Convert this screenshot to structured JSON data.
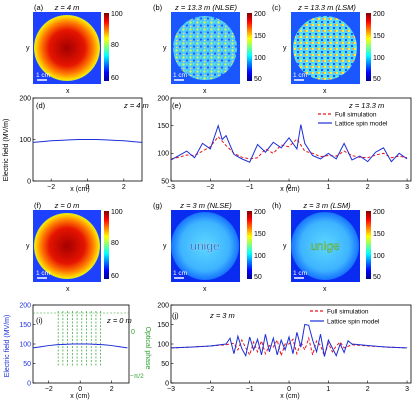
{
  "panels": {
    "a": {
      "letter": "(a)",
      "title": "z = 4 m",
      "xlabel": "x",
      "ylabel": "y",
      "scalebar": "1 cm",
      "colorbar_ticks": [
        "100",
        "80",
        "60"
      ],
      "cmin": 60,
      "cmax": 100
    },
    "b": {
      "letter": "(b)",
      "title": "z = 13.3 m (NLSE)",
      "xlabel": "x",
      "ylabel": "y",
      "scalebar": "1 cm",
      "colorbar_ticks": [
        "200",
        "150",
        "100",
        "50"
      ],
      "cmin": 50,
      "cmax": 200
    },
    "c": {
      "letter": "(c)",
      "title": "z = 13.3 m (LSM)",
      "xlabel": "x",
      "ylabel": "y",
      "scalebar": "1 cm",
      "colorbar_ticks": [
        "200",
        "150",
        "100",
        "50"
      ],
      "cmin": 50,
      "cmax": 200
    },
    "d": {
      "letter": "(d)",
      "title": "z = 4 m",
      "xlabel": "x (cm)"
    },
    "e": {
      "letter": "(e)",
      "title": "z = 13.3 m",
      "xlabel": "x (cm)",
      "legend": [
        "Full simulation",
        "Lattice spin model"
      ]
    },
    "f": {
      "letter": "(f)",
      "title": "z = 0 m",
      "xlabel": "x",
      "ylabel": "y",
      "scalebar": "1 cm",
      "colorbar_ticks": [
        "100",
        "80",
        "60"
      ],
      "cmin": 60,
      "cmax": 100
    },
    "g": {
      "letter": "(g)",
      "title": "z = 3 m (NLSE)",
      "xlabel": "x",
      "ylabel": "y",
      "scalebar": "1 cm",
      "image_text": "unige",
      "colorbar_ticks": [
        "200",
        "150",
        "100",
        "50"
      ],
      "cmin": 50,
      "cmax": 200
    },
    "h": {
      "letter": "(h)",
      "title": "z = 3 m (LSM)",
      "xlabel": "x",
      "ylabel": "y",
      "scalebar": "1 cm",
      "image_text": "unige",
      "colorbar_ticks": [
        "200",
        "150",
        "100",
        "50"
      ],
      "cmin": 50,
      "cmax": 200
    },
    "i": {
      "letter": "(i)",
      "title": "z = 0 m",
      "xlabel": "x (cm)",
      "ylabel_left": "Electric field (MV/m)",
      "ylabel_right": "Optical phase",
      "right_ticks": [
        "0",
        "−π/2"
      ]
    },
    "j": {
      "letter": "(j)",
      "title": "z = 3 m",
      "xlabel": "x (cm)",
      "legend": [
        "Full simulation",
        "Lattice spin model"
      ]
    }
  },
  "shared_ylabel": "Electric field (MV/m)",
  "colors": {
    "full_simulation": "#e8141b",
    "lattice_spin_model": "#1c2fd8",
    "phase": "#2ca02c"
  },
  "chart_data": [
    {
      "id": "d",
      "type": "line",
      "xlim": [
        -3,
        3
      ],
      "ylim": [
        0,
        200
      ],
      "xticks": [
        -2,
        0,
        2
      ],
      "yticks": [
        0,
        100,
        200
      ],
      "series": [
        {
          "name": "field",
          "color": "#1c2fd8",
          "x": [
            -3,
            -2.5,
            -2,
            -1.5,
            -1,
            -0.5,
            0,
            0.5,
            1,
            1.5,
            2,
            2.5,
            3
          ],
          "y": [
            93,
            95,
            97,
            98,
            99,
            100,
            100,
            100,
            99,
            98,
            97,
            95,
            93
          ]
        }
      ]
    },
    {
      "id": "e",
      "type": "line",
      "xlim": [
        -3,
        3.1
      ],
      "ylim": [
        50,
        200
      ],
      "xticks": [
        -3,
        -2,
        -1,
        0,
        1,
        2,
        3
      ],
      "yticks": [
        50,
        100,
        150,
        200
      ],
      "series": [
        {
          "name": "Full simulation",
          "style": "dashed",
          "color": "#e8141b",
          "x": [
            -3,
            -2.8,
            -2.6,
            -2.4,
            -2.2,
            -2.0,
            -1.8,
            -1.6,
            -1.4,
            -1.2,
            -1.0,
            -0.8,
            -0.6,
            -0.4,
            -0.2,
            0,
            0.2,
            0.4,
            0.6,
            0.8,
            1.0,
            1.2,
            1.4,
            1.6,
            1.8,
            2.0,
            2.2,
            2.4,
            2.6,
            2.8,
            3.0
          ],
          "y": [
            90,
            93,
            97,
            96,
            104,
            112,
            130,
            114,
            100,
            93,
            90,
            92,
            108,
            100,
            115,
            112,
            126,
            104,
            100,
            94,
            96,
            95,
            104,
            96,
            93,
            92,
            97,
            100,
            92,
            95,
            92
          ]
        },
        {
          "name": "Lattice spin model",
          "style": "solid",
          "color": "#1c2fd8",
          "x": [
            -3,
            -2.8,
            -2.6,
            -2.4,
            -2.2,
            -2.0,
            -1.8,
            -1.7,
            -1.6,
            -1.4,
            -1.2,
            -1.0,
            -0.8,
            -0.6,
            -0.4,
            -0.2,
            0,
            0.2,
            0.3,
            0.4,
            0.6,
            0.8,
            1.0,
            1.2,
            1.4,
            1.6,
            1.8,
            2.0,
            2.2,
            2.4,
            2.6,
            2.8,
            3.0
          ],
          "y": [
            88,
            96,
            104,
            92,
            118,
            108,
            150,
            125,
            132,
            98,
            90,
            84,
            116,
            102,
            120,
            110,
            128,
            108,
            152,
            118,
            96,
            90,
            100,
            90,
            118,
            88,
            95,
            85,
            102,
            110,
            85,
            100,
            90
          ]
        }
      ]
    },
    {
      "id": "i",
      "type": "line",
      "xlim": [
        -3,
        3.1
      ],
      "ylim": [
        0,
        200
      ],
      "xticks": [
        -2,
        0,
        2
      ],
      "yticks": [
        0,
        50,
        100,
        150,
        200
      ],
      "series": [
        {
          "name": "field",
          "color": "#1c2fd8",
          "x": [
            -3,
            -2.5,
            -2,
            -1.5,
            -1,
            -0.5,
            0,
            0.5,
            1,
            1.5,
            2,
            2.5,
            3
          ],
          "y": [
            90,
            93,
            96,
            98,
            99,
            100,
            100,
            100,
            99,
            98,
            96,
            93,
            90
          ]
        }
      ],
      "phase_marks_x": [
        -1.4,
        -1.1,
        -0.8,
        -0.5,
        -0.2,
        0.1,
        0.4,
        0.7,
        1.0,
        1.3
      ]
    },
    {
      "id": "j",
      "type": "line",
      "xlim": [
        -3,
        3.1
      ],
      "ylim": [
        0,
        200
      ],
      "xticks": [
        -3,
        -2,
        -1,
        0,
        1,
        2,
        3
      ],
      "yticks": [
        0,
        50,
        100,
        150,
        200
      ],
      "series": [
        {
          "name": "Full simulation",
          "style": "dashed",
          "color": "#e8141b",
          "x": [
            -3,
            -2.5,
            -2,
            -1.6,
            -1.4,
            -1.3,
            -1.2,
            -1.1,
            -1.0,
            -0.9,
            -0.8,
            -0.7,
            -0.6,
            -0.5,
            -0.4,
            -0.3,
            -0.2,
            -0.1,
            0,
            0.1,
            0.2,
            0.3,
            0.4,
            0.5,
            0.6,
            0.7,
            0.8,
            0.9,
            1.0,
            1.1,
            1.2,
            1.3,
            1.4,
            1.6,
            2.0,
            2.5,
            3.0
          ],
          "y": [
            90,
            92,
            95,
            98,
            102,
            85,
            110,
            90,
            72,
            105,
            80,
            108,
            75,
            96,
            92,
            110,
            70,
            100,
            100,
            112,
            75,
            105,
            85,
            115,
            72,
            108,
            96,
            70,
            102,
            80,
            95,
            105,
            90,
            98,
            95,
            92,
            90
          ]
        },
        {
          "name": "Lattice spin model",
          "style": "solid",
          "color": "#1c2fd8",
          "x": [
            -3,
            -2.5,
            -2,
            -1.6,
            -1.5,
            -1.4,
            -1.3,
            -1.2,
            -1.1,
            -1.0,
            -0.9,
            -0.8,
            -0.7,
            -0.6,
            -0.5,
            -0.4,
            -0.3,
            -0.2,
            -0.1,
            0,
            0.1,
            0.2,
            0.3,
            0.4,
            0.5,
            0.6,
            0.7,
            0.8,
            0.9,
            1.0,
            1.1,
            1.2,
            1.3,
            1.4,
            1.5,
            1.6,
            2.0,
            2.5,
            3.0
          ],
          "y": [
            90,
            92,
            95,
            100,
            115,
            75,
            120,
            88,
            70,
            118,
            85,
            112,
            72,
            125,
            80,
            115,
            72,
            110,
            85,
            118,
            75,
            130,
            92,
            150,
            148,
            110,
            80,
            125,
            68,
            110,
            90,
            70,
            100,
            78,
            108,
            100,
            96,
            92,
            90
          ]
        }
      ]
    }
  ]
}
